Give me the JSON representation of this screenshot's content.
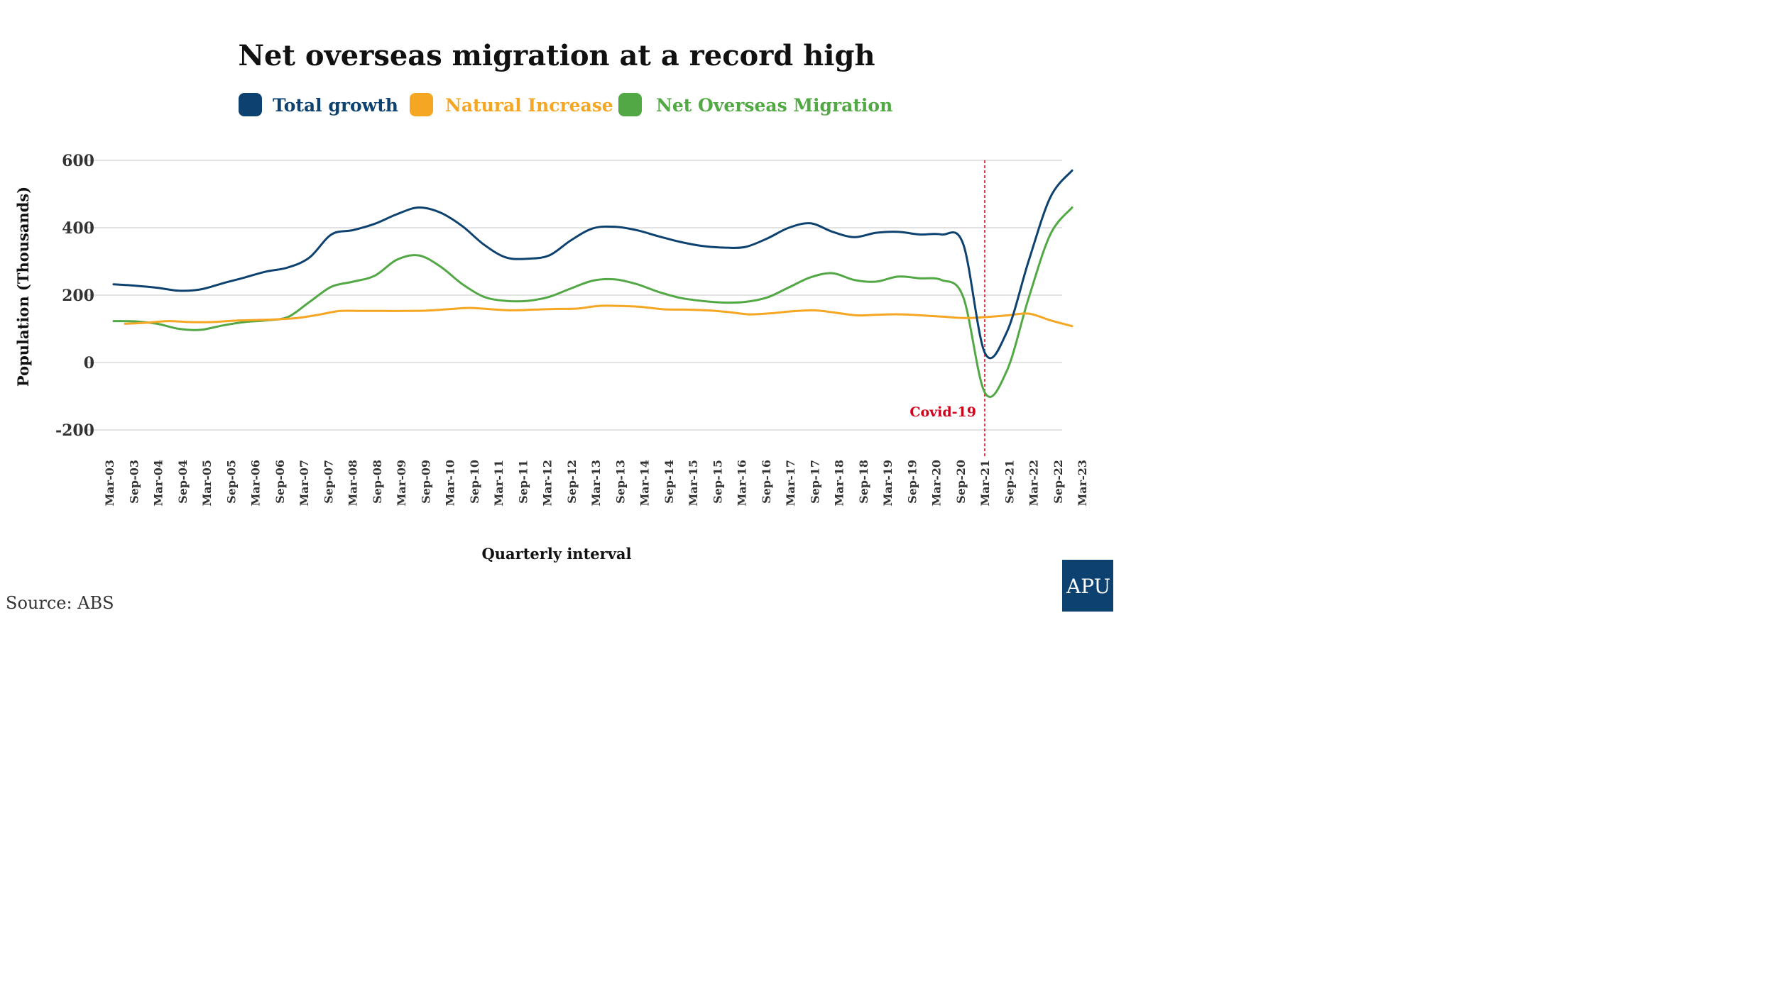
{
  "chart_data": {
    "type": "line",
    "title": "Net overseas migration at a record high",
    "xlabel": "Quarterly interval",
    "ylabel": "Population (Thousands)",
    "ylim": [
      -200,
      600
    ],
    "yticks": [
      600,
      400,
      200,
      0,
      -200
    ],
    "ytick_labels": [
      "600",
      "400",
      "200",
      "0",
      "-200"
    ],
    "grid": true,
    "legend_position": "top",
    "x_tick_labels": [
      "Mar-03",
      "Sep-03",
      "Mar-04",
      "Sep-04",
      "Mar-05",
      "Sep-05",
      "Mar-06",
      "Sep-06",
      "Mar-07",
      "Sep-07",
      "Mar-08",
      "Sep-08",
      "Mar-09",
      "Sep-09",
      "Mar-10",
      "Sep-10",
      "Mar-11",
      "Sep-11",
      "Mar-12",
      "Sep-12",
      "Mar-13",
      "Sep-13",
      "Mar-14",
      "Sep-14",
      "Mar-15",
      "Sep-15",
      "Mar-16",
      "Sep-16",
      "Mar-17",
      "Sep-17",
      "Mar-18",
      "Sep-18",
      "Mar-19",
      "Sep-19",
      "Mar-20",
      "Sep-20",
      "Mar-21",
      "Sep-21",
      "Mar-22",
      "Sep-22",
      "Mar-23"
    ],
    "series": [
      {
        "name": "Total growth",
        "color": "#0d4270",
        "values": [
          232,
          228,
          222,
          213,
          217,
          235,
          252,
          270,
          282,
          312,
          380,
          393,
          412,
          440,
          460,
          445,
          405,
          350,
          312,
          308,
          318,
          363,
          398,
          403,
          393,
          375,
          358,
          346,
          341,
          343,
          368,
          400,
          413,
          388,
          372,
          385,
          388,
          380,
          380,
          352,
          28,
          90,
          300,
          490,
          570
        ]
      },
      {
        "name": "Natural Increase",
        "color": "#f5a623",
        "values": [
          115,
          118,
          123,
          120,
          120,
          124,
          126,
          128,
          132,
          142,
          153,
          153,
          153,
          153,
          154,
          158,
          162,
          158,
          155,
          157,
          159,
          160,
          168,
          168,
          165,
          158,
          157,
          155,
          150,
          143,
          146,
          152,
          155,
          148,
          140,
          142,
          143,
          140,
          136,
          132,
          135,
          140,
          145,
          125,
          108
        ]
      },
      {
        "name": "Net Overseas Migration",
        "color": "#52a844",
        "values": [
          123,
          122,
          115,
          100,
          97,
          110,
          120,
          125,
          135,
          180,
          225,
          240,
          258,
          305,
          318,
          285,
          233,
          195,
          183,
          183,
          195,
          220,
          243,
          247,
          233,
          210,
          192,
          183,
          178,
          180,
          193,
          223,
          253,
          265,
          245,
          240,
          255,
          250,
          245,
          195,
          -90,
          -25,
          190,
          380,
          460
        ]
      }
    ],
    "annotation": {
      "label": "Covid-19",
      "x_label": "Mar-21",
      "color": "#d0021b"
    }
  },
  "source": "Source: ABS",
  "logo_text": "APU",
  "logo_color": "#0d4270"
}
